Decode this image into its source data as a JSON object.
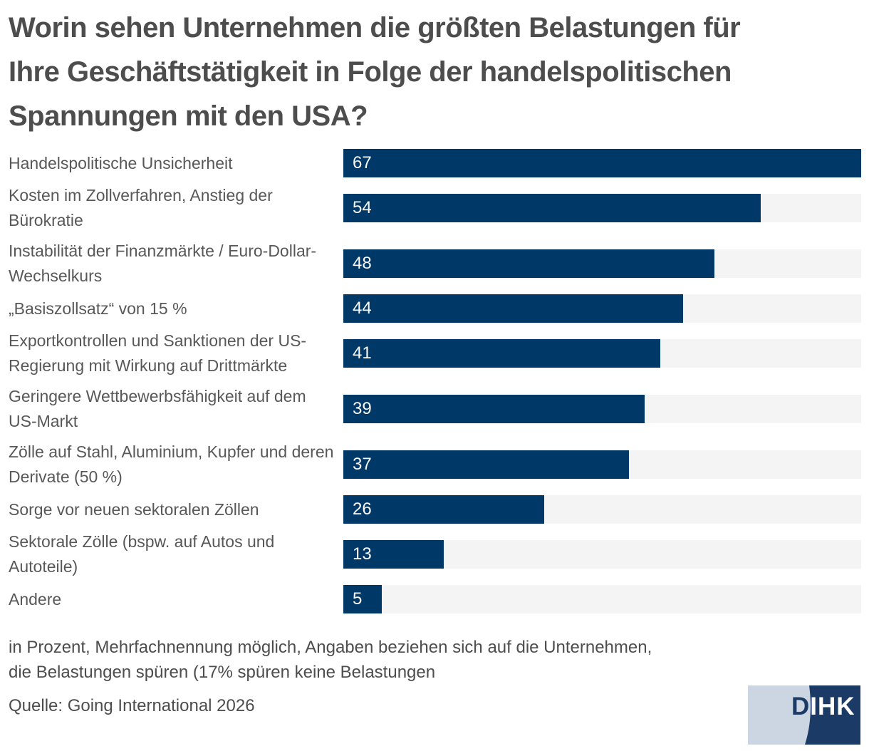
{
  "title": "Worin sehen Unternehmen die größten Belastungen für\nIhre Geschäftstätigkeit in Folge der handelspolitischen\nSpannungen mit den USA?",
  "chart_data": {
    "type": "bar",
    "orientation": "horizontal",
    "title": "Worin sehen Unternehmen die größten Belastungen für Ihre Geschäftstätigkeit in Folge der handelspolitischen Spannungen mit den USA?",
    "categories": [
      "Handelspolitische Unsicherheit",
      "Kosten im Zollverfahren, Anstieg der Bürokratie",
      "Instabilität der Finanzmärkte / Euro-Dollar-Wechselkurs",
      "„Basiszollsatz“ von 15 %",
      "Exportkontrollen und Sanktionen der US-Regierung mit Wirkung auf Drittmärkte",
      "Geringere Wettbewerbsfähigkeit auf dem US-Markt",
      "Zölle auf Stahl, Aluminium, Kupfer und deren Derivate (50 %)",
      "Sorge vor neuen sektoralen Zöllen",
      "Sektorale Zölle (bspw. auf Autos und Autoteile)",
      "Andere"
    ],
    "values": [
      67,
      54,
      48,
      44,
      41,
      39,
      37,
      26,
      13,
      5
    ],
    "unit": "Prozent",
    "xlim": [
      0,
      67
    ],
    "grid": false,
    "legend": false,
    "value_labels": "inside-left",
    "bar_color": "#003867",
    "track_color": "#f4f4f5",
    "value_label_color": "#fafafa"
  },
  "footnote": {
    "line1": "in Prozent, Mehrfachnennung möglich, Angaben beziehen sich auf die Unternehmen,",
    "line2": "die Belastungen spüren (17% spüren keine Belastungen",
    "source": "Quelle: Going International 2026"
  },
  "logo": {
    "letter_d": "D",
    "letters_ihk": "IHK",
    "navy_color": "#1c3a66",
    "light_color": "#ccd6e3"
  }
}
